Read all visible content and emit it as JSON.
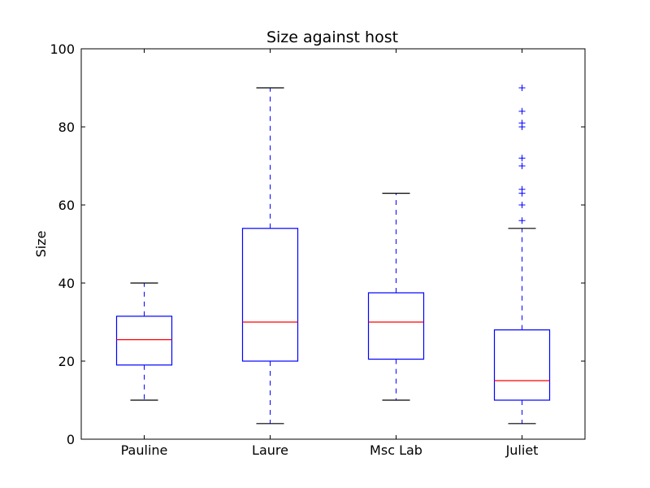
{
  "chart_data": {
    "type": "box",
    "title": "Size against host",
    "xlabel": "",
    "ylabel": "Size",
    "ylim": [
      0,
      100
    ],
    "yticks": [
      0,
      20,
      40,
      60,
      80,
      100
    ],
    "grid": false,
    "legend": "none",
    "categories": [
      "Pauline",
      "Laure",
      "Msc Lab",
      "Juliet"
    ],
    "boxes": [
      {
        "category": "Pauline",
        "whisker_low": 10,
        "q1": 19,
        "median": 25.5,
        "q3": 31.5,
        "whisker_high": 40,
        "outliers": []
      },
      {
        "category": "Laure",
        "whisker_low": 4,
        "q1": 20,
        "median": 30,
        "q3": 54,
        "whisker_high": 90,
        "outliers": []
      },
      {
        "category": "Msc Lab",
        "whisker_low": 10,
        "q1": 20.5,
        "median": 30,
        "q3": 37.5,
        "whisker_high": 63,
        "outliers": []
      },
      {
        "category": "Juliet",
        "whisker_low": 4,
        "q1": 10,
        "median": 15,
        "q3": 28,
        "whisker_high": 54,
        "outliers": [
          56,
          60,
          63,
          64,
          70,
          72,
          80,
          81,
          84,
          90
        ]
      }
    ],
    "colors": {
      "box": "#0000ff",
      "median": "#ff0000",
      "cap": "#000000",
      "outlier": "#0000ff"
    }
  }
}
